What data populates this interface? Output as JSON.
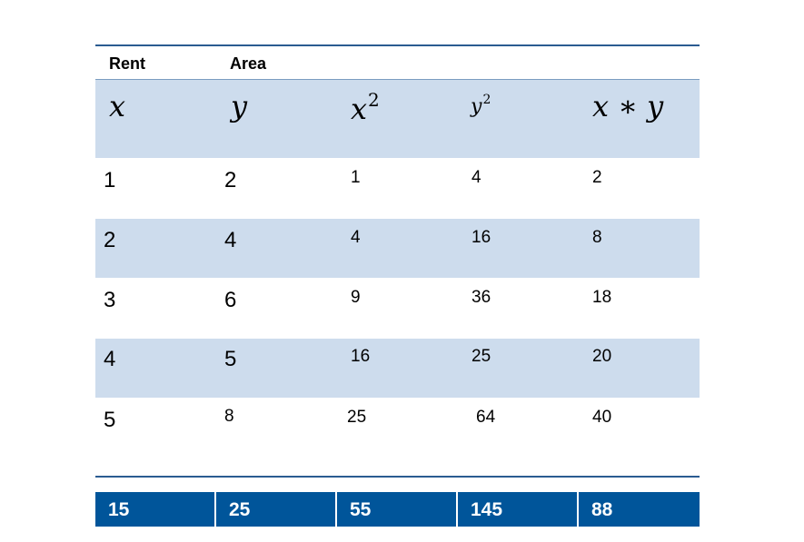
{
  "labels": {
    "x_label": "Rent",
    "y_label": "Area"
  },
  "header": {
    "x": "x",
    "y": "y",
    "x2_base": "x",
    "x2_exp": "2",
    "y2_base": "y",
    "y2_exp": "2",
    "xy": "x ∗ y"
  },
  "rows": [
    {
      "x": "1",
      "y": "2",
      "x2": "1",
      "y2": "4",
      "xy": "2"
    },
    {
      "x": "2",
      "y": "4",
      "x2": "4",
      "y2": "16",
      "xy": "8"
    },
    {
      "x": "3",
      "y": "6",
      "x2": "9",
      "y2": "36",
      "xy": "18"
    },
    {
      "x": "4",
      "y": "5",
      "x2": "16",
      "y2": "25",
      "xy": "20"
    },
    {
      "x": "5",
      "y": "8",
      "x2": "25",
      "y2": "64",
      "xy": "40"
    }
  ],
  "totals": [
    "15",
    "25",
    "55",
    "145",
    "88"
  ]
}
